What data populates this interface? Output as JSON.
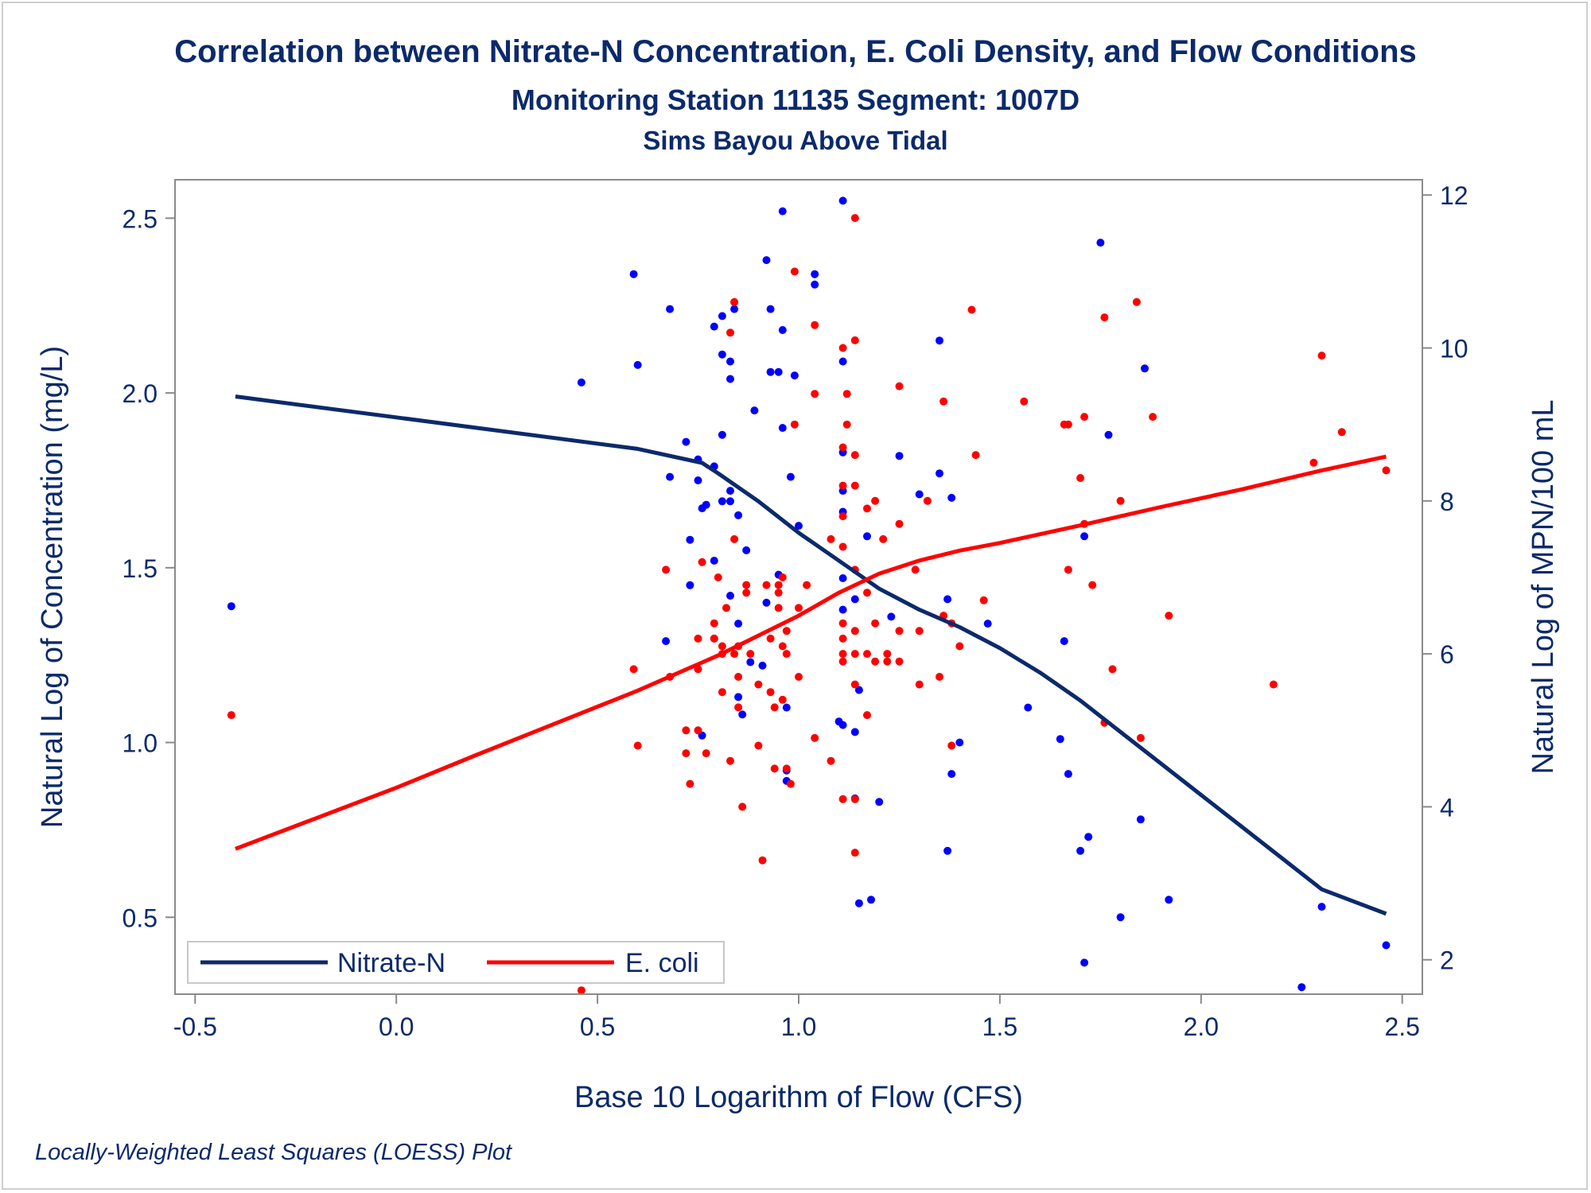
{
  "chart_data": {
    "type": "scatter",
    "title": "Correlation between Nitrate-N Concentration, E. Coli Density, and Flow Conditions",
    "subtitle": "Monitoring Station 11135 Segment: 1007D",
    "subtitle2": "Sims Bayou Above Tidal",
    "xlabel": "Base 10 Logarithm of Flow (CFS)",
    "ylabel_left": "Natural Log of Concentration (mg/L)",
    "ylabel_right": "Natural Log of MPN/100 mL",
    "footnote": "Locally-Weighted Least Squares (LOESS) Plot",
    "xlim": [
      -0.55,
      2.55
    ],
    "ylim_left": [
      0.28,
      2.61
    ],
    "ylim_right": [
      1.55,
      12.2
    ],
    "x_ticks": [
      "-0.5",
      "0.0",
      "0.5",
      "1.0",
      "1.5",
      "2.0",
      "2.5"
    ],
    "y_left_ticks": [
      "0.5",
      "1.0",
      "1.5",
      "2.0",
      "2.5"
    ],
    "y_right_ticks": [
      "2",
      "4",
      "6",
      "8",
      "10",
      "12"
    ],
    "grid": false,
    "legend_position": "bottom-left",
    "colors": {
      "nitrate": "#0b2a6b",
      "nitrate_points": "#0000ff",
      "ecoli": "#ff0000",
      "text": "#0b2a6b"
    },
    "series": [
      {
        "name": "Nitrate-N",
        "axis": "left",
        "kind": "loess-line",
        "x": [
          -0.4,
          -0.2,
          0.0,
          0.2,
          0.4,
          0.6,
          0.76,
          0.8,
          0.9,
          1.0,
          1.1,
          1.2,
          1.3,
          1.4,
          1.5,
          1.6,
          1.7,
          1.8,
          1.9,
          2.0,
          2.1,
          2.2,
          2.3,
          2.46
        ],
        "y": [
          1.99,
          1.96,
          1.93,
          1.9,
          1.87,
          1.84,
          1.8,
          1.77,
          1.69,
          1.6,
          1.52,
          1.44,
          1.38,
          1.33,
          1.27,
          1.2,
          1.12,
          1.03,
          0.94,
          0.85,
          0.76,
          0.67,
          0.58,
          0.51
        ]
      },
      {
        "name": "E. coli",
        "axis": "right",
        "kind": "loess-line",
        "x": [
          -0.4,
          -0.2,
          0.0,
          0.2,
          0.4,
          0.6,
          0.8,
          1.0,
          1.1,
          1.2,
          1.3,
          1.4,
          1.5,
          1.7,
          1.9,
          2.1,
          2.3,
          2.46
        ],
        "y": [
          3.45,
          3.85,
          4.25,
          4.68,
          5.1,
          5.52,
          5.98,
          6.5,
          6.8,
          7.05,
          7.22,
          7.35,
          7.45,
          7.68,
          7.92,
          8.15,
          8.4,
          8.58
        ]
      },
      {
        "name": "Nitrate-N points",
        "axis": "left",
        "kind": "points",
        "points": [
          [
            -0.41,
            1.39
          ],
          [
            0.46,
            2.03
          ],
          [
            0.59,
            2.34
          ],
          [
            0.6,
            2.08
          ],
          [
            0.67,
            1.29
          ],
          [
            0.68,
            2.24
          ],
          [
            0.68,
            1.76
          ],
          [
            0.72,
            1.86
          ],
          [
            0.73,
            1.58
          ],
          [
            0.73,
            1.45
          ],
          [
            0.75,
            1.81
          ],
          [
            0.75,
            1.75
          ],
          [
            0.76,
            1.67
          ],
          [
            0.76,
            1.02
          ],
          [
            0.77,
            1.68
          ],
          [
            0.79,
            2.19
          ],
          [
            0.79,
            1.79
          ],
          [
            0.79,
            1.52
          ],
          [
            0.81,
            2.22
          ],
          [
            0.81,
            2.11
          ],
          [
            0.81,
            1.88
          ],
          [
            0.81,
            1.69
          ],
          [
            0.83,
            2.09
          ],
          [
            0.83,
            2.04
          ],
          [
            0.83,
            1.72
          ],
          [
            0.83,
            1.69
          ],
          [
            0.83,
            1.42
          ],
          [
            0.84,
            2.24
          ],
          [
            0.85,
            1.65
          ],
          [
            0.85,
            1.34
          ],
          [
            0.85,
            1.13
          ],
          [
            0.86,
            1.08
          ],
          [
            0.87,
            1.55
          ],
          [
            0.88,
            1.23
          ],
          [
            0.89,
            1.95
          ],
          [
            0.91,
            1.22
          ],
          [
            0.92,
            2.38
          ],
          [
            0.92,
            1.4
          ],
          [
            0.93,
            2.24
          ],
          [
            0.93,
            2.06
          ],
          [
            0.95,
            2.06
          ],
          [
            0.95,
            1.48
          ],
          [
            0.96,
            2.52
          ],
          [
            0.96,
            2.18
          ],
          [
            0.96,
            1.9
          ],
          [
            0.97,
            1.1
          ],
          [
            0.97,
            0.92
          ],
          [
            0.97,
            0.89
          ],
          [
            0.98,
            1.76
          ],
          [
            0.99,
            2.05
          ],
          [
            1.0,
            1.62
          ],
          [
            1.04,
            2.34
          ],
          [
            1.04,
            2.31
          ],
          [
            1.1,
            1.06
          ],
          [
            1.11,
            2.55
          ],
          [
            1.11,
            2.09
          ],
          [
            1.11,
            1.83
          ],
          [
            1.11,
            1.72
          ],
          [
            1.11,
            1.66
          ],
          [
            1.11,
            1.47
          ],
          [
            1.11,
            1.38
          ],
          [
            1.11,
            1.05
          ],
          [
            1.14,
            1.41
          ],
          [
            1.14,
            1.03
          ],
          [
            1.14,
            0.84
          ],
          [
            1.15,
            1.15
          ],
          [
            1.15,
            0.54
          ],
          [
            1.17,
            1.59
          ],
          [
            1.18,
            0.55
          ],
          [
            1.2,
            0.83
          ],
          [
            1.23,
            1.36
          ],
          [
            1.25,
            1.82
          ],
          [
            1.3,
            1.71
          ],
          [
            1.35,
            2.15
          ],
          [
            1.35,
            1.77
          ],
          [
            1.37,
            1.41
          ],
          [
            1.37,
            0.69
          ],
          [
            1.38,
            1.7
          ],
          [
            1.38,
            0.91
          ],
          [
            1.4,
            1.0
          ],
          [
            1.47,
            1.34
          ],
          [
            1.57,
            1.1
          ],
          [
            1.65,
            1.01
          ],
          [
            1.66,
            1.29
          ],
          [
            1.67,
            0.91
          ],
          [
            1.7,
            0.69
          ],
          [
            1.71,
            1.59
          ],
          [
            1.71,
            0.37
          ],
          [
            1.72,
            0.73
          ],
          [
            1.75,
            2.43
          ],
          [
            1.77,
            1.88
          ],
          [
            1.8,
            0.5
          ],
          [
            1.85,
            0.78
          ],
          [
            1.86,
            2.07
          ],
          [
            1.92,
            0.55
          ],
          [
            2.25,
            0.3
          ],
          [
            2.3,
            0.53
          ],
          [
            2.46,
            0.42
          ]
        ]
      },
      {
        "name": "E. coli points",
        "axis": "right",
        "kind": "points",
        "points": [
          [
            -0.41,
            5.2
          ],
          [
            0.46,
            1.6
          ],
          [
            0.59,
            5.8
          ],
          [
            0.6,
            4.8
          ],
          [
            0.67,
            7.1
          ],
          [
            0.68,
            5.7
          ],
          [
            0.72,
            5.0
          ],
          [
            0.72,
            4.7
          ],
          [
            0.73,
            4.3
          ],
          [
            0.75,
            6.2
          ],
          [
            0.75,
            5.8
          ],
          [
            0.75,
            5.0
          ],
          [
            0.76,
            7.2
          ],
          [
            0.77,
            4.7
          ],
          [
            0.79,
            6.4
          ],
          [
            0.79,
            6.2
          ],
          [
            0.79,
            6.2
          ],
          [
            0.8,
            7.0
          ],
          [
            0.81,
            6.1
          ],
          [
            0.81,
            6.0
          ],
          [
            0.81,
            5.5
          ],
          [
            0.82,
            6.6
          ],
          [
            0.83,
            10.2
          ],
          [
            0.83,
            4.6
          ],
          [
            0.84,
            10.6
          ],
          [
            0.84,
            7.5
          ],
          [
            0.84,
            6.0
          ],
          [
            0.85,
            6.1
          ],
          [
            0.85,
            5.7
          ],
          [
            0.85,
            5.3
          ],
          [
            0.86,
            4.0
          ],
          [
            0.87,
            6.9
          ],
          [
            0.87,
            6.8
          ],
          [
            0.88,
            6.0
          ],
          [
            0.9,
            5.6
          ],
          [
            0.9,
            4.8
          ],
          [
            0.91,
            3.3
          ],
          [
            0.92,
            6.9
          ],
          [
            0.93,
            6.2
          ],
          [
            0.93,
            5.5
          ],
          [
            0.94,
            5.3
          ],
          [
            0.94,
            4.5
          ],
          [
            0.95,
            6.9
          ],
          [
            0.95,
            6.8
          ],
          [
            0.95,
            6.6
          ],
          [
            0.96,
            7.0
          ],
          [
            0.96,
            6.1
          ],
          [
            0.96,
            5.4
          ],
          [
            0.97,
            6.3
          ],
          [
            0.97,
            6.0
          ],
          [
            0.97,
            4.5
          ],
          [
            0.98,
            4.3
          ],
          [
            0.99,
            11.0
          ],
          [
            0.99,
            9.0
          ],
          [
            1.0,
            6.6
          ],
          [
            1.0,
            5.7
          ],
          [
            1.02,
            6.9
          ],
          [
            1.04,
            10.3
          ],
          [
            1.04,
            9.4
          ],
          [
            1.04,
            4.9
          ],
          [
            1.08,
            7.5
          ],
          [
            1.08,
            4.6
          ],
          [
            1.11,
            10.0
          ],
          [
            1.11,
            8.7
          ],
          [
            1.11,
            8.2
          ],
          [
            1.11,
            7.8
          ],
          [
            1.11,
            7.4
          ],
          [
            1.11,
            6.4
          ],
          [
            1.11,
            6.2
          ],
          [
            1.11,
            6.0
          ],
          [
            1.11,
            5.9
          ],
          [
            1.11,
            4.1
          ],
          [
            1.12,
            9.4
          ],
          [
            1.12,
            9.0
          ],
          [
            1.14,
            11.7
          ],
          [
            1.14,
            10.1
          ],
          [
            1.14,
            8.6
          ],
          [
            1.14,
            8.2
          ],
          [
            1.14,
            7.1
          ],
          [
            1.14,
            6.3
          ],
          [
            1.14,
            6.0
          ],
          [
            1.14,
            5.6
          ],
          [
            1.14,
            4.1
          ],
          [
            1.14,
            3.4
          ],
          [
            1.17,
            7.9
          ],
          [
            1.17,
            6.8
          ],
          [
            1.17,
            6.0
          ],
          [
            1.17,
            5.2
          ],
          [
            1.19,
            8.0
          ],
          [
            1.19,
            6.4
          ],
          [
            1.19,
            5.9
          ],
          [
            1.21,
            7.5
          ],
          [
            1.22,
            6.0
          ],
          [
            1.22,
            5.9
          ],
          [
            1.25,
            9.5
          ],
          [
            1.25,
            7.7
          ],
          [
            1.25,
            6.3
          ],
          [
            1.25,
            5.9
          ],
          [
            1.29,
            7.1
          ],
          [
            1.3,
            6.3
          ],
          [
            1.3,
            5.6
          ],
          [
            1.32,
            8.0
          ],
          [
            1.35,
            5.7
          ],
          [
            1.36,
            9.3
          ],
          [
            1.36,
            6.5
          ],
          [
            1.38,
            6.4
          ],
          [
            1.38,
            4.8
          ],
          [
            1.4,
            6.1
          ],
          [
            1.43,
            10.5
          ],
          [
            1.44,
            8.6
          ],
          [
            1.46,
            6.7
          ],
          [
            1.56,
            9.3
          ],
          [
            1.66,
            9.0
          ],
          [
            1.67,
            9.0
          ],
          [
            1.67,
            7.1
          ],
          [
            1.7,
            8.3
          ],
          [
            1.71,
            9.1
          ],
          [
            1.71,
            7.7
          ],
          [
            1.73,
            6.9
          ],
          [
            1.76,
            10.4
          ],
          [
            1.76,
            5.1
          ],
          [
            1.78,
            5.8
          ],
          [
            1.8,
            8.0
          ],
          [
            1.84,
            10.6
          ],
          [
            1.85,
            4.9
          ],
          [
            1.88,
            9.1
          ],
          [
            1.92,
            6.5
          ],
          [
            2.18,
            5.6
          ],
          [
            2.28,
            8.5
          ],
          [
            2.3,
            9.9
          ],
          [
            2.35,
            8.9
          ],
          [
            2.46,
            8.4
          ]
        ]
      }
    ]
  }
}
